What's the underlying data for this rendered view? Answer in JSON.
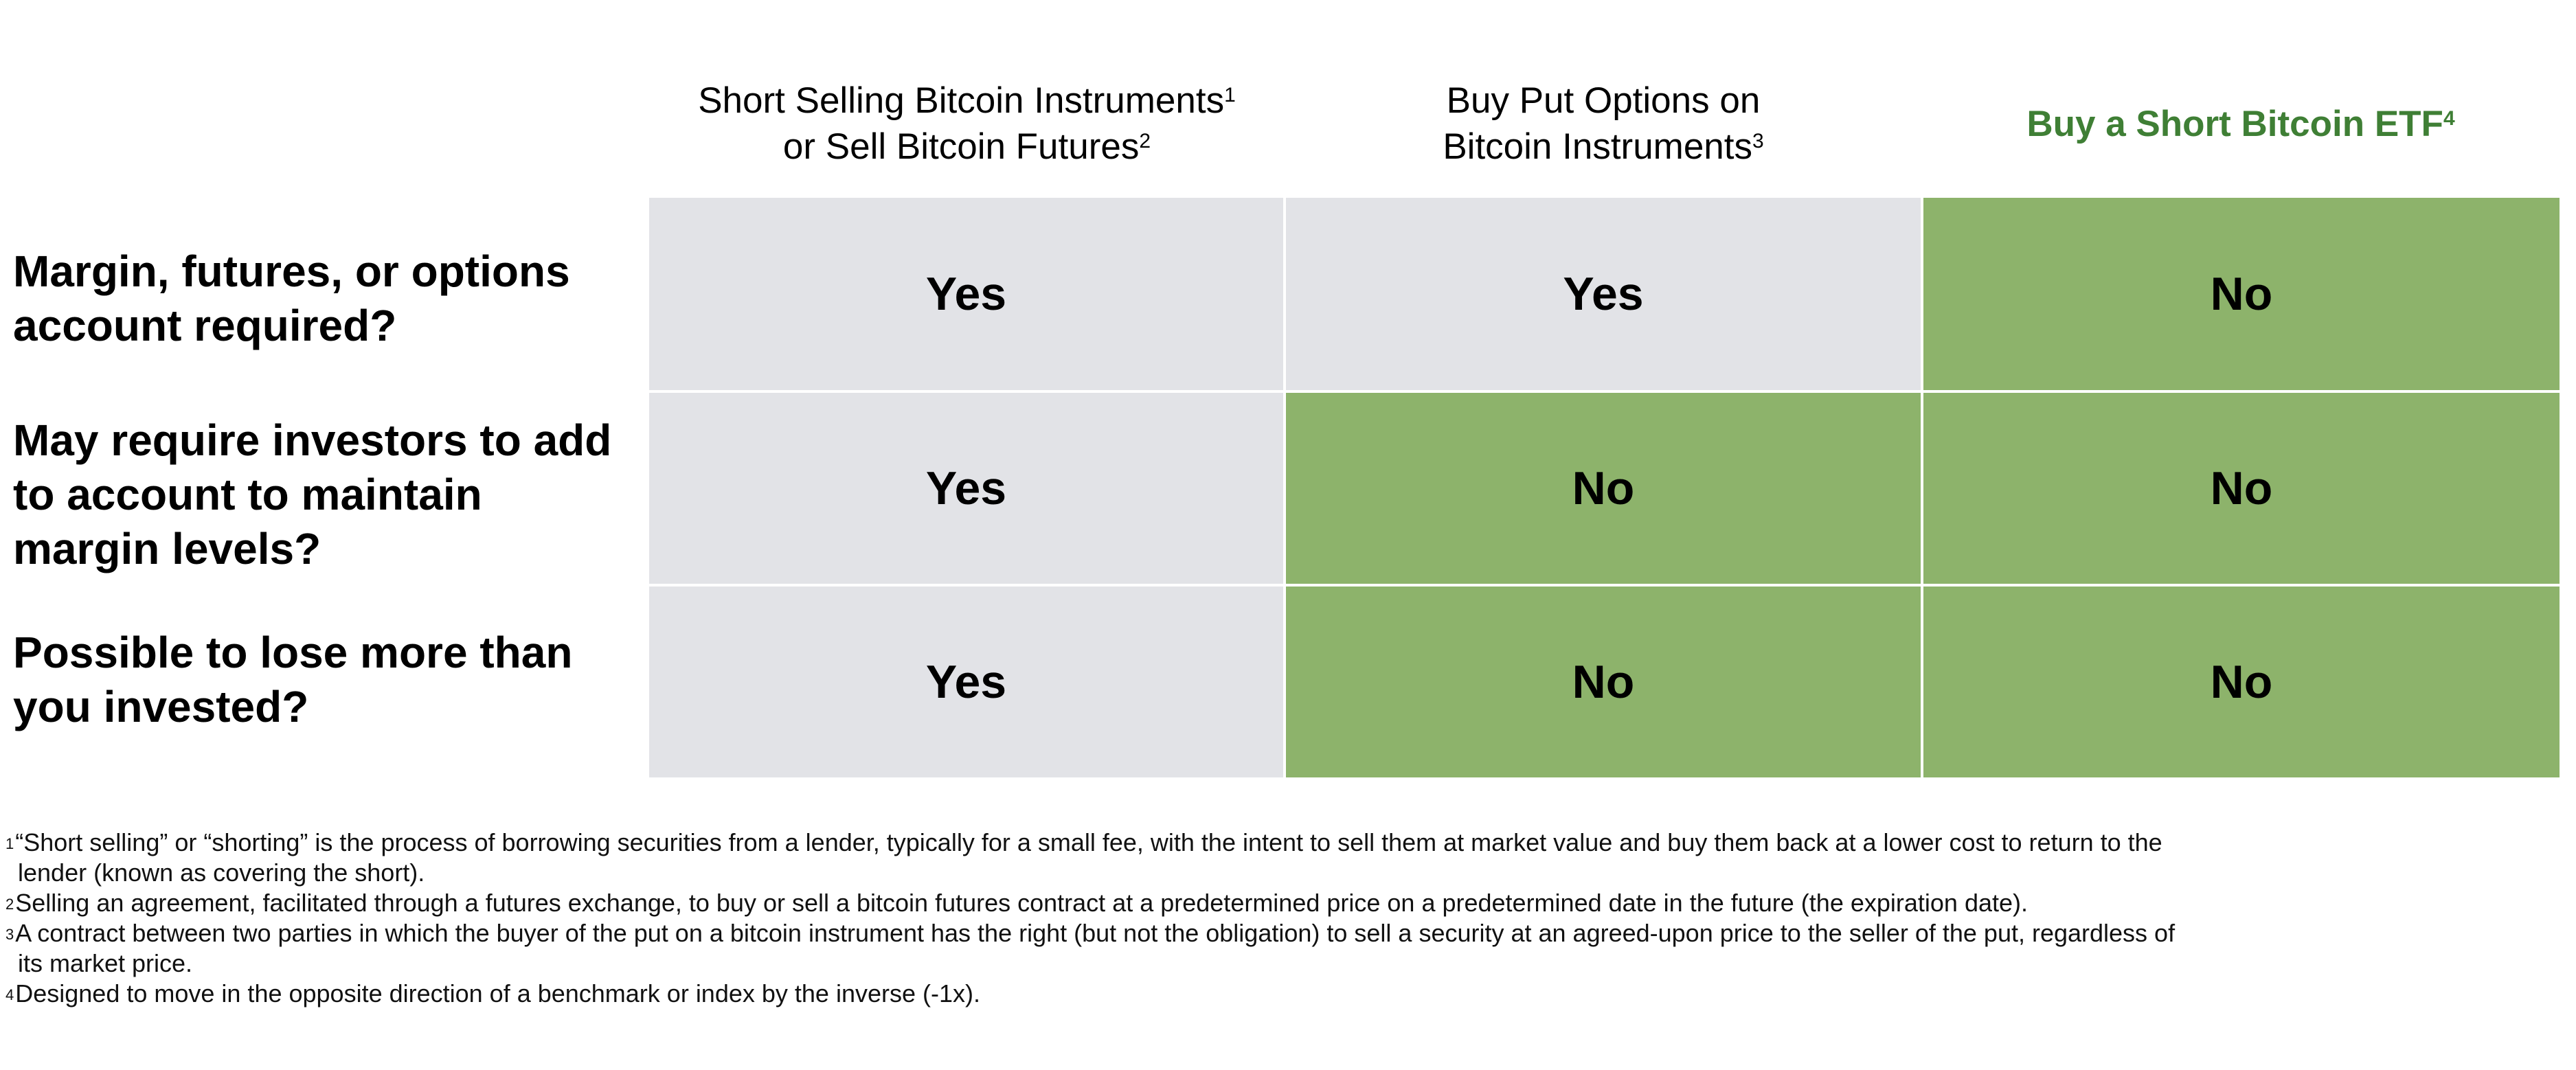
{
  "columns": [
    {
      "line1": "Short Selling Bitcoin Instruments",
      "sup1": "1",
      "line2": "or Sell Bitcoin Futures",
      "sup2": "2"
    },
    {
      "line1": "Buy Put Options on",
      "line2": "Bitcoin Instruments",
      "sup2": "3"
    },
    {
      "line1": "Buy a Short Bitcoin ETF",
      "sup1": "4"
    }
  ],
  "rows": [
    {
      "label": "Margin, futures, or options account required?",
      "values": [
        "Yes",
        "Yes",
        "No"
      ]
    },
    {
      "label": "May require investors to add to account to maintain margin levels?",
      "values": [
        "Yes",
        "No",
        "No"
      ]
    },
    {
      "label": "Possible to lose more than you invested?",
      "values": [
        "Yes",
        "No",
        "No"
      ]
    }
  ],
  "colors": {
    "neutral": "#e2e3e7",
    "favorable": "#8db36b",
    "highlight_header": "#3f7f35"
  },
  "footnotes": [
    {
      "num": "1",
      "text": "“Short selling” or “shorting” is the process of borrowing securities from a lender, typically for a small fee, with the intent to sell them at market value and buy them back at a lower cost to return to the",
      "cont": "lender (known as covering the short)."
    },
    {
      "num": "2",
      "text": "Selling an agreement, facilitated through a futures exchange, to buy or sell a bitcoin futures contract at a predetermined price on a predetermined date in the future (the expiration date)."
    },
    {
      "num": "3",
      "text": "A contract between two parties in which the buyer of the put on a bitcoin instrument has the right (but not the obligation) to sell a security at an agreed-upon price to the seller of the put, regardless of",
      "cont": "its market price."
    },
    {
      "num": "4",
      "text": "Designed to move in the opposite direction of a benchmark or index by the inverse (-1x)."
    }
  ]
}
